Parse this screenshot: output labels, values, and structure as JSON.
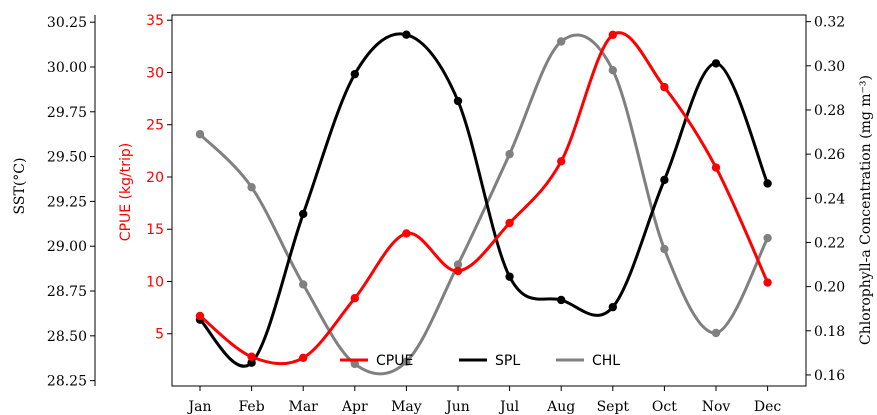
{
  "chart_data": {
    "type": "line",
    "categories": [
      "Jan",
      "Feb",
      "Mar",
      "Apr",
      "May",
      "Jun",
      "Jul",
      "Aug",
      "Sept",
      "Oct",
      "Nov",
      "Dec"
    ],
    "axes": {
      "sst": {
        "label": "SST(°C)",
        "ylim": [
          28.22,
          30.29
        ],
        "ticks": [
          "28.25",
          "28.50",
          "28.75",
          "29.00",
          "29.25",
          "29.50",
          "29.75",
          "30.00",
          "30.25"
        ],
        "color": "#000000"
      },
      "cpue": {
        "label": "CPUE (kg/trip)",
        "ylim": [
          0,
          35.5
        ],
        "ticks": [
          "5",
          "10",
          "15",
          "20",
          "25",
          "30",
          "35"
        ],
        "color": "#ff0000"
      },
      "chl": {
        "label": "Chlorophyll-a Concentration (mg m⁻³)",
        "ylim": [
          0.155,
          0.323
        ],
        "ticks": [
          "0.16",
          "0.18",
          "0.20",
          "0.22",
          "0.24",
          "0.26",
          "0.28",
          "0.30",
          "0.32"
        ],
        "color": "#000000"
      }
    },
    "series": [
      {
        "name": "CPUE",
        "axis": "cpue",
        "color": "#ff0000",
        "values": [
          6.7,
          2.8,
          2.7,
          8.4,
          14.6,
          11.0,
          15.6,
          21.5,
          33.6,
          28.6,
          20.9,
          9.9
        ]
      },
      {
        "name": "SPL",
        "axis": "sst",
        "color": "#000000",
        "values": [
          28.59,
          28.35,
          29.18,
          29.96,
          30.18,
          29.81,
          28.83,
          28.7,
          28.66,
          29.37,
          30.02,
          29.35
        ]
      },
      {
        "name": "CHL",
        "axis": "chl",
        "color": "#808080",
        "values": [
          0.269,
          0.245,
          0.201,
          0.165,
          0.166,
          0.21,
          0.26,
          0.311,
          0.298,
          0.217,
          0.179,
          0.222
        ]
      }
    ],
    "legend": {
      "position": "bottom-center"
    },
    "grid": false
  }
}
